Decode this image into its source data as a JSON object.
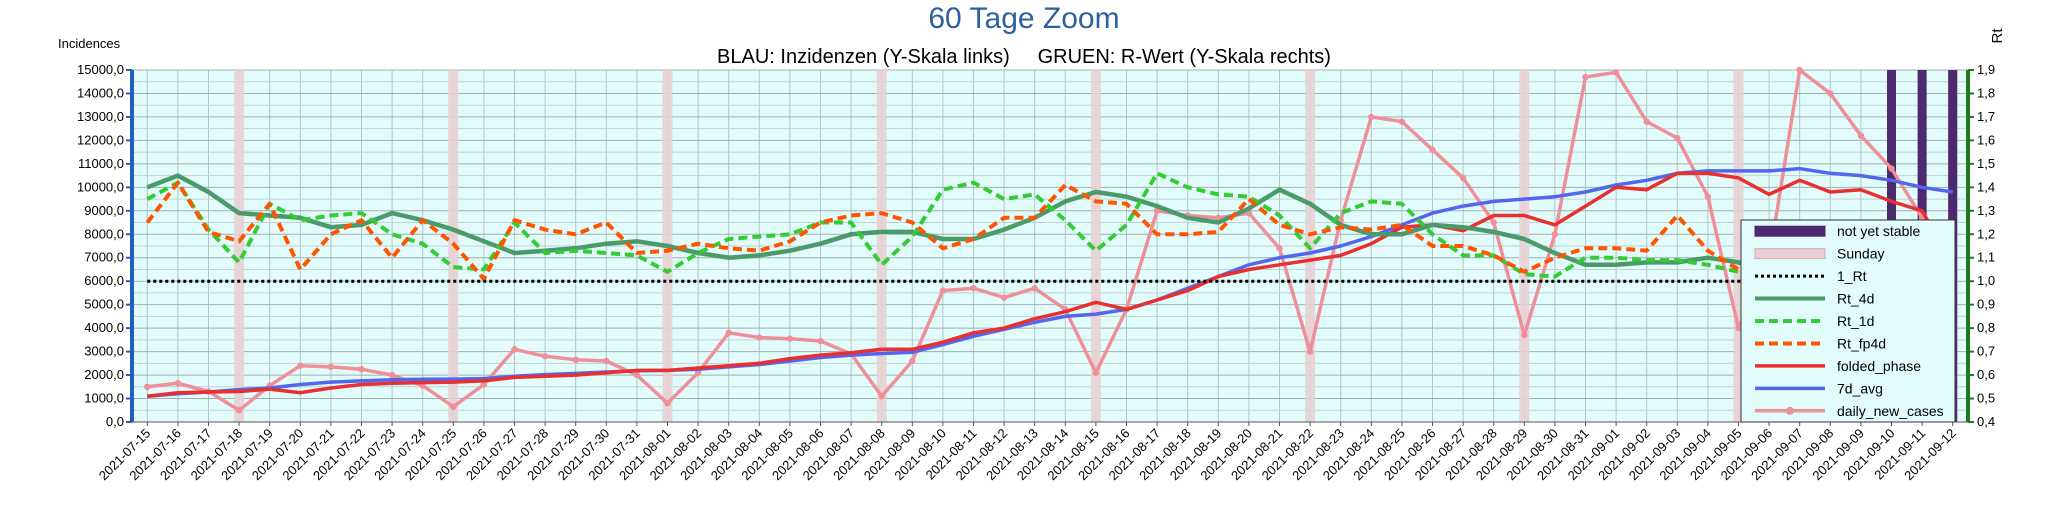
{
  "chart_data": {
    "type": "line",
    "title": "60 Tage Zoom",
    "subtitle": "BLAU: Inzidenzen (Y-Skala links)     GRUEN: R-Wert (Y-Skala rechts)",
    "ylabel_left": "Incidences",
    "ylabel_right": "Rt",
    "ylim_left": [
      0,
      15000
    ],
    "ylim_right": [
      0.4,
      1.9
    ],
    "yticks_left": [
      "0,0",
      "1000,0",
      "2000,0",
      "3000,0",
      "4000,0",
      "5000,0",
      "6000,0",
      "7000,0",
      "8000,0",
      "9000,0",
      "10000,0",
      "11000,0",
      "12000,0",
      "13000,0",
      "14000,0",
      "15000,0"
    ],
    "yticks_right": [
      "0,4",
      "0,5",
      "0,6",
      "0,7",
      "0,8",
      "0,9",
      "1,0",
      "1,1",
      "1,2",
      "1,3",
      "1,4",
      "1,5",
      "1,6",
      "1,7",
      "1,8",
      "1,9"
    ],
    "grid": true,
    "legend_position": "right",
    "x": [
      "2021-07-15",
      "2021-07-16",
      "2021-07-17",
      "2021-07-18",
      "2021-07-19",
      "2021-07-20",
      "2021-07-21",
      "2021-07-22",
      "2021-07-23",
      "2021-07-24",
      "2021-07-25",
      "2021-07-26",
      "2021-07-27",
      "2021-07-28",
      "2021-07-29",
      "2021-07-30",
      "2021-07-31",
      "2021-08-01",
      "2021-08-02",
      "2021-08-03",
      "2021-08-04",
      "2021-08-05",
      "2021-08-06",
      "2021-08-07",
      "2021-08-08",
      "2021-08-09",
      "2021-08-10",
      "2021-08-11",
      "2021-08-12",
      "2021-08-13",
      "2021-08-14",
      "2021-08-15",
      "2021-08-16",
      "2021-08-17",
      "2021-08-18",
      "2021-08-19",
      "2021-08-20",
      "2021-08-21",
      "2021-08-22",
      "2021-08-23",
      "2021-08-24",
      "2021-08-25",
      "2021-08-26",
      "2021-08-27",
      "2021-08-28",
      "2021-08-29",
      "2021-08-30",
      "2021-08-31",
      "2021-09-01",
      "2021-09-02",
      "2021-09-03",
      "2021-09-04",
      "2021-09-05",
      "2021-09-06",
      "2021-09-07",
      "2021-09-08",
      "2021-09-09",
      "2021-09-10",
      "2021-09-11",
      "2021-09-12"
    ],
    "sundays": [
      "2021-07-18",
      "2021-07-25",
      "2021-08-01",
      "2021-08-08",
      "2021-08-15",
      "2021-08-22",
      "2021-08-29",
      "2021-09-05",
      "2021-09-12"
    ],
    "not_yet_stable": [
      "2021-09-10",
      "2021-09-11",
      "2021-09-12"
    ],
    "series": [
      {
        "name": "1_Rt",
        "axis": "right",
        "color": "#000000",
        "style": "dotted",
        "values": [
          1.0,
          1.0,
          1.0,
          1.0,
          1.0,
          1.0,
          1.0,
          1.0,
          1.0,
          1.0,
          1.0,
          1.0,
          1.0,
          1.0,
          1.0,
          1.0,
          1.0,
          1.0,
          1.0,
          1.0,
          1.0,
          1.0,
          1.0,
          1.0,
          1.0,
          1.0,
          1.0,
          1.0,
          1.0,
          1.0,
          1.0,
          1.0,
          1.0,
          1.0,
          1.0,
          1.0,
          1.0,
          1.0,
          1.0,
          1.0,
          1.0,
          1.0,
          1.0,
          1.0,
          1.0,
          1.0,
          1.0,
          1.0,
          1.0,
          1.0,
          1.0,
          1.0,
          1.0,
          1.0,
          1.0,
          1.0,
          1.0,
          1.0,
          1.0,
          1.0
        ]
      },
      {
        "name": "Rt_4d",
        "axis": "right",
        "color": "#4a9a6a",
        "style": "solid",
        "values": [
          1.4,
          1.45,
          1.38,
          1.29,
          1.28,
          1.27,
          1.23,
          1.24,
          1.29,
          1.26,
          1.22,
          1.17,
          1.12,
          1.13,
          1.14,
          1.16,
          1.17,
          1.15,
          1.12,
          1.1,
          1.11,
          1.13,
          1.16,
          1.2,
          1.21,
          1.21,
          1.18,
          1.18,
          1.22,
          1.27,
          1.34,
          1.38,
          1.36,
          1.32,
          1.27,
          1.25,
          1.31,
          1.39,
          1.33,
          1.24,
          1.2,
          1.2,
          1.24,
          1.23,
          1.21,
          1.18,
          1.12,
          1.07,
          1.07,
          1.08,
          1.08,
          1.1,
          1.08,
          1.05,
          1.04,
          1.03,
          1.0,
          0.99,
          0.97,
          0.92
        ]
      },
      {
        "name": "Rt_1d",
        "axis": "right",
        "color": "#33cc33",
        "style": "dashed",
        "values": [
          1.35,
          1.42,
          1.22,
          1.08,
          1.33,
          1.26,
          1.28,
          1.29,
          1.2,
          1.16,
          1.06,
          1.05,
          1.25,
          1.12,
          1.13,
          1.12,
          1.11,
          1.04,
          1.12,
          1.18,
          1.19,
          1.2,
          1.25,
          1.25,
          1.07,
          1.19,
          1.39,
          1.42,
          1.35,
          1.37,
          1.26,
          1.13,
          1.24,
          1.46,
          1.4,
          1.37,
          1.36,
          1.28,
          1.14,
          1.29,
          1.34,
          1.33,
          1.2,
          1.11,
          1.11,
          1.03,
          1.02,
          1.1,
          1.1,
          1.09,
          1.09,
          1.07,
          1.04,
          1.01,
          0.99,
          0.96,
          0.96,
          0.92,
          0.9,
          0.88
        ]
      },
      {
        "name": "Rt_fp4d",
        "axis": "right",
        "color": "#ff5500",
        "style": "dashed",
        "values": [
          1.25,
          1.42,
          1.21,
          1.17,
          1.33,
          1.05,
          1.2,
          1.26,
          1.1,
          1.26,
          1.16,
          1.01,
          1.26,
          1.22,
          1.2,
          1.25,
          1.12,
          1.13,
          1.16,
          1.14,
          1.13,
          1.17,
          1.25,
          1.28,
          1.29,
          1.25,
          1.14,
          1.18,
          1.27,
          1.27,
          1.41,
          1.34,
          1.33,
          1.2,
          1.2,
          1.21,
          1.35,
          1.24,
          1.2,
          1.23,
          1.22,
          1.24,
          1.15,
          1.15,
          1.11,
          1.04,
          1.1,
          1.14,
          1.14,
          1.13,
          1.28,
          1.13,
          1.05,
          0.99,
          0.98,
          0.93,
          0.96,
          0.95,
          0.83,
          0.66
        ]
      },
      {
        "name": "folded_phase",
        "axis": "left",
        "color": "#e83030",
        "style": "solid",
        "values": [
          1100,
          1250,
          1280,
          1300,
          1400,
          1250,
          1450,
          1600,
          1650,
          1680,
          1700,
          1750,
          1900,
          1950,
          2000,
          2100,
          2200,
          2200,
          2300,
          2400,
          2500,
          2700,
          2850,
          2950,
          3100,
          3100,
          3400,
          3800,
          4000,
          4400,
          4700,
          5100,
          4800,
          5200,
          5600,
          6200,
          6500,
          6700,
          6900,
          7100,
          7600,
          8300,
          8400,
          8150,
          8800,
          8800,
          8400,
          9200,
          10000,
          9900,
          10600,
          10600,
          10400,
          9700,
          10300,
          9800,
          9900,
          9400,
          9000,
          6700
        ]
      },
      {
        "name": "7d_avg",
        "axis": "left",
        "color": "#5566ee",
        "style": "solid",
        "values": [
          1100,
          1200,
          1280,
          1380,
          1450,
          1600,
          1700,
          1750,
          1800,
          1820,
          1830,
          1850,
          1950,
          2020,
          2070,
          2130,
          2180,
          2200,
          2250,
          2350,
          2450,
          2600,
          2750,
          2850,
          2920,
          2970,
          3300,
          3650,
          3950,
          4250,
          4500,
          4600,
          4800,
          5200,
          5700,
          6200,
          6700,
          7000,
          7200,
          7500,
          7900,
          8400,
          8900,
          9200,
          9400,
          9500,
          9600,
          9800,
          10100,
          10300,
          10600,
          10700,
          10700,
          10700,
          10800,
          10600,
          10500,
          10300,
          10000,
          9800
        ]
      },
      {
        "name": "daily_new_cases",
        "axis": "left",
        "color": "#ee8f9a",
        "style": "solid-markers",
        "values": [
          1500,
          1650,
          1300,
          500,
          1550,
          2400,
          2350,
          2250,
          2000,
          1550,
          650,
          1600,
          3100,
          2800,
          2650,
          2600,
          2000,
          800,
          2100,
          3800,
          3600,
          3550,
          3450,
          2900,
          1100,
          2600,
          5600,
          5700,
          5300,
          5700,
          4800,
          2100,
          4800,
          9000,
          8800,
          8700,
          8900,
          7400,
          3000,
          8600,
          13000,
          12800,
          11600,
          10400,
          8500,
          3700,
          8000,
          14700,
          14900,
          12800,
          12100,
          9600,
          4000,
          6900,
          15000,
          14000,
          12200,
          10800,
          8700,
          1900
        ]
      }
    ]
  }
}
